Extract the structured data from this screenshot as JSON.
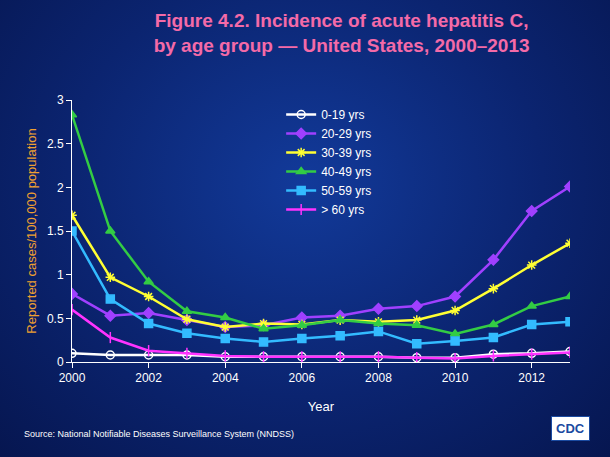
{
  "chart_data": {
    "type": "line",
    "title": "Figure 4.2. Incidence of acute hepatitis C,\nby age group — United States, 2000–2013",
    "x_label": "Year",
    "y_label": "Reported cases/100,000 population",
    "annotations": [
      {
        "text": "Source: National Notifiable Diseases Surveillance System (NNDSS)"
      },
      {
        "text": "CDC"
      }
    ],
    "x": [
      2000,
      2001,
      2002,
      2003,
      2004,
      2005,
      2006,
      2007,
      2008,
      2009,
      2010,
      2011,
      2012,
      2013
    ],
    "series": [
      {
        "name": "0-19 yrs",
        "color": "#ffffff",
        "marker": "circle-open",
        "values": [
          0.1,
          0.08,
          0.08,
          0.08,
          0.06,
          0.06,
          0.06,
          0.06,
          0.06,
          0.05,
          0.05,
          0.09,
          0.1,
          0.12
        ]
      },
      {
        "name": "20-29 yrs",
        "color": "#a040ff",
        "marker": "diamond",
        "values": [
          0.78,
          0.53,
          0.56,
          0.48,
          0.4,
          0.42,
          0.51,
          0.53,
          0.61,
          0.64,
          0.75,
          1.17,
          1.73,
          2.01
        ]
      },
      {
        "name": "30-39 yrs",
        "color": "#ffff33",
        "marker": "asterisk-open",
        "values": [
          1.68,
          0.97,
          0.75,
          0.49,
          0.4,
          0.44,
          0.43,
          0.48,
          0.46,
          0.48,
          0.59,
          0.84,
          1.11,
          1.36
        ]
      },
      {
        "name": "40-49 yrs",
        "color": "#33cc44",
        "marker": "triangle-up",
        "values": [
          2.83,
          1.5,
          0.92,
          0.58,
          0.51,
          0.38,
          0.42,
          0.48,
          0.44,
          0.42,
          0.32,
          0.43,
          0.64,
          0.75
        ]
      },
      {
        "name": "50-59 yrs",
        "color": "#33bbff",
        "marker": "square",
        "values": [
          1.5,
          0.72,
          0.44,
          0.33,
          0.27,
          0.23,
          0.27,
          0.3,
          0.35,
          0.21,
          0.24,
          0.28,
          0.43,
          0.46
        ]
      },
      {
        "name": "> 60 yrs",
        "color": "#ff33ff",
        "marker": "line-ns-open",
        "values": [
          0.6,
          0.28,
          0.13,
          0.1,
          0.07,
          0.06,
          0.06,
          0.06,
          0.06,
          0.05,
          0.04,
          0.07,
          0.09,
          0.11
        ]
      }
    ],
    "xlim": [
      2000,
      2013
    ],
    "xticks": [
      2000,
      2002,
      2004,
      2006,
      2008,
      2010,
      2012
    ],
    "ylim": [
      0,
      3
    ],
    "yticks": [
      0,
      0.5,
      1,
      1.5,
      2,
      2.5,
      3
    ],
    "grid": false,
    "legend": "top"
  }
}
